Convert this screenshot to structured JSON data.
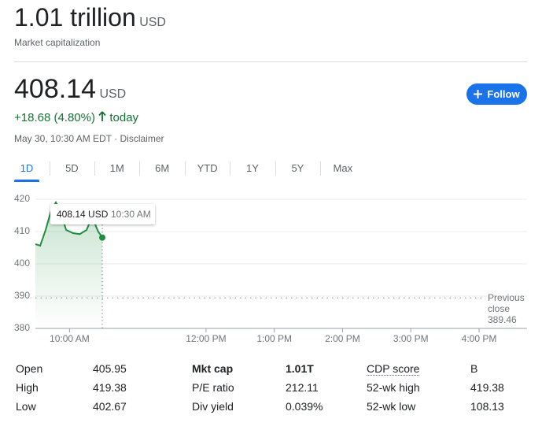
{
  "market_cap": {
    "value": "1.01 trillion",
    "currency": "USD",
    "label": "Market capitalization"
  },
  "quote": {
    "price": "408.14",
    "currency": "USD",
    "change": "+18.68 (4.80%)",
    "period": "today",
    "timestamp": "May 30, 10:30 AM EDT · Disclaimer"
  },
  "follow_button": "Follow",
  "tabs": {
    "items": [
      "1D",
      "5D",
      "1M",
      "6M",
      "YTD",
      "1Y",
      "5Y",
      "Max"
    ],
    "selected": 0
  },
  "chart_data": {
    "type": "line",
    "color": "#1e8e3e",
    "x": [
      9.5,
      9.57,
      9.65,
      9.73,
      9.8,
      9.87,
      9.95,
      10.05,
      10.15,
      10.25,
      10.33,
      10.42,
      10.48
    ],
    "values": [
      406.1,
      405.6,
      410.5,
      416.5,
      419.0,
      416.0,
      410.5,
      409.5,
      409.2,
      410.5,
      414.5,
      410.0,
      408.14
    ],
    "xlim": [
      9.5,
      16
    ],
    "xticks": [
      {
        "value": 10,
        "label": "10:00 AM"
      },
      {
        "value": 12,
        "label": "12:00 PM"
      },
      {
        "value": 13,
        "label": "1:00 PM"
      },
      {
        "value": 14,
        "label": "2:00 PM"
      },
      {
        "value": 15,
        "label": "3:00 PM"
      },
      {
        "value": 16,
        "label": "4:00 PM"
      }
    ],
    "ylim": [
      380,
      420
    ],
    "yticks": [
      380,
      390,
      400,
      410,
      420
    ],
    "grid": true,
    "reference_line": {
      "label": "Previous close",
      "value": 389.46
    },
    "tooltip": {
      "price": "408.14 USD",
      "time": "10:30 AM"
    }
  },
  "stats": {
    "rows": [
      [
        "Open",
        "405.95",
        "Mkt cap",
        "1.01T",
        "CDP score",
        "B"
      ],
      [
        "High",
        "419.38",
        "P/E ratio",
        "212.11",
        "52-wk high",
        "419.38"
      ],
      [
        "Low",
        "402.67",
        "Div yield",
        "0.039%",
        "52-wk low",
        "108.13"
      ]
    ]
  }
}
